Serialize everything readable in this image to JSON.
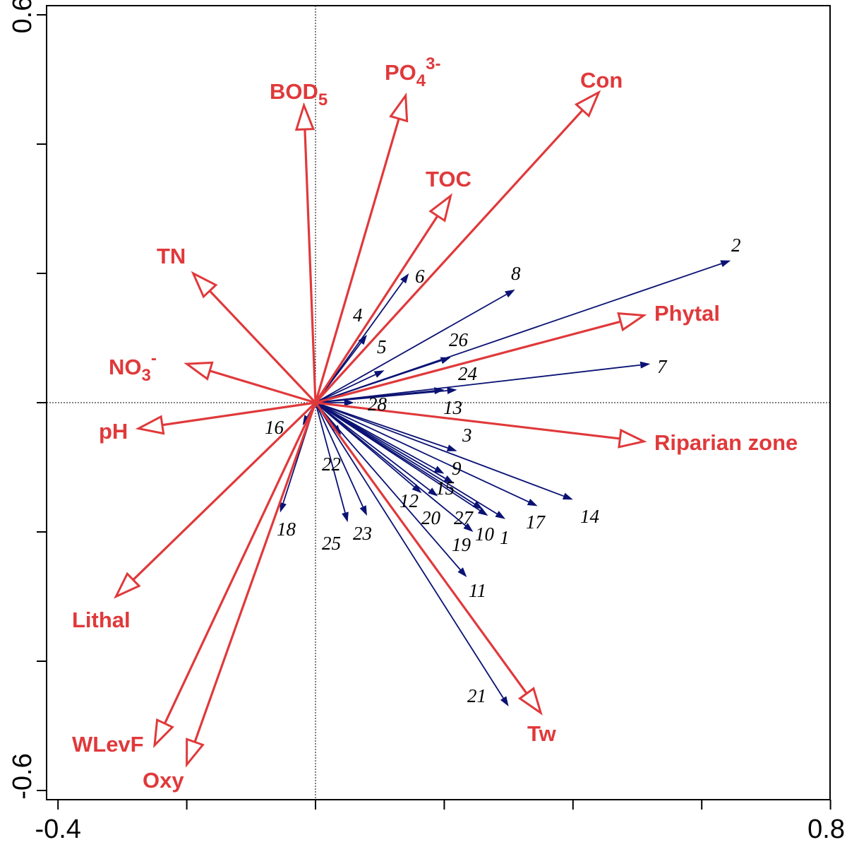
{
  "chart_data": {
    "type": "scatter",
    "subtype": "biplot",
    "title": "",
    "xlabel": "",
    "ylabel": "",
    "xlim": [
      -0.4,
      0.8
    ],
    "ylim": [
      -0.6,
      0.6
    ],
    "x_tick_labels": [
      "-0.4",
      "0.8"
    ],
    "y_tick_labels": [
      "0.6",
      "-0.6"
    ],
    "x_minor_ticks": [
      -0.4,
      -0.2,
      0.0,
      0.2,
      0.4,
      0.6,
      0.8
    ],
    "y_minor_ticks": [
      -0.6,
      -0.4,
      -0.2,
      0.0,
      0.2,
      0.4,
      0.6
    ],
    "reference_lines": {
      "x": 0,
      "y": 0,
      "style": "dotted"
    },
    "colors": {
      "environmental": "#e0393b",
      "species": "#0a1273"
    },
    "environmental_vectors": [
      {
        "id": "bod5",
        "label": "BOD",
        "sub": "5",
        "sup": "",
        "x": -0.018,
        "y": 0.46
      },
      {
        "id": "po4",
        "label": "PO",
        "sub": "4",
        "sup": "3-",
        "x": 0.14,
        "y": 0.475
      },
      {
        "id": "con",
        "label": "Con",
        "sub": "",
        "sup": "",
        "x": 0.44,
        "y": 0.48
      },
      {
        "id": "toc",
        "label": "TOC",
        "sub": "",
        "sup": "",
        "x": 0.21,
        "y": 0.32
      },
      {
        "id": "tn",
        "label": "TN",
        "sub": "",
        "sup": "",
        "x": -0.19,
        "y": 0.2
      },
      {
        "id": "phytal",
        "label": "Phytal",
        "sub": "",
        "sup": "",
        "x": 0.51,
        "y": 0.135
      },
      {
        "id": "no3",
        "label": "NO",
        "sub": "3",
        "sup": "-",
        "x": -0.2,
        "y": 0.06
      },
      {
        "id": "ph",
        "label": "pH",
        "sub": "",
        "sup": "",
        "x": -0.275,
        "y": -0.04
      },
      {
        "id": "riparian",
        "label": "Riparian zone",
        "sub": "",
        "sup": "",
        "x": 0.51,
        "y": -0.06
      },
      {
        "id": "lithal",
        "label": "Lithal",
        "sub": "",
        "sup": "",
        "x": -0.31,
        "y": -0.3
      },
      {
        "id": "wlevf",
        "label": "WLevF",
        "sub": "",
        "sup": "",
        "x": -0.25,
        "y": -0.53
      },
      {
        "id": "oxy",
        "label": "Oxy",
        "sub": "",
        "sup": "",
        "x": -0.2,
        "y": -0.56
      },
      {
        "id": "tw",
        "label": "Tw",
        "sub": "",
        "sup": "",
        "x": 0.35,
        "y": -0.48
      }
    ],
    "species_vectors": [
      {
        "label": "1",
        "x": 0.295,
        "y": -0.18
      },
      {
        "label": "2",
        "x": 0.645,
        "y": 0.22
      },
      {
        "label": "3",
        "x": 0.22,
        "y": -0.075
      },
      {
        "label": "4",
        "x": 0.08,
        "y": 0.105
      },
      {
        "label": "5",
        "x": 0.107,
        "y": 0.05
      },
      {
        "label": "6",
        "x": 0.145,
        "y": 0.2
      },
      {
        "label": "7",
        "x": 0.52,
        "y": 0.06
      },
      {
        "label": "8",
        "x": 0.31,
        "y": 0.175
      },
      {
        "label": "9",
        "x": 0.2,
        "y": -0.11
      },
      {
        "label": "10",
        "x": 0.268,
        "y": -0.175
      },
      {
        "label": "11",
        "x": 0.235,
        "y": -0.27
      },
      {
        "label": "12",
        "x": 0.165,
        "y": -0.14
      },
      {
        "label": "13",
        "x": 0.22,
        "y": 0.02
      },
      {
        "label": "14",
        "x": 0.4,
        "y": -0.15
      },
      {
        "label": "15",
        "x": 0.215,
        "y": -0.125
      },
      {
        "label": "16",
        "x": -0.02,
        "y": -0.035
      },
      {
        "label": "17",
        "x": 0.345,
        "y": -0.16
      },
      {
        "label": "18",
        "x": -0.055,
        "y": -0.17
      },
      {
        "label": "19",
        "x": 0.245,
        "y": -0.2
      },
      {
        "label": "20",
        "x": 0.19,
        "y": -0.145
      },
      {
        "label": "21",
        "x": 0.3,
        "y": -0.47
      },
      {
        "label": "22",
        "x": 0.04,
        "y": -0.05
      },
      {
        "label": "23",
        "x": 0.08,
        "y": -0.175
      },
      {
        "label": "24",
        "x": 0.2,
        "y": 0.02
      },
      {
        "label": "25",
        "x": 0.05,
        "y": -0.185
      },
      {
        "label": "26",
        "x": 0.21,
        "y": 0.07
      },
      {
        "label": "27",
        "x": 0.26,
        "y": -0.165
      },
      {
        "label": "28",
        "x": 0.06,
        "y": 0.0
      }
    ]
  }
}
